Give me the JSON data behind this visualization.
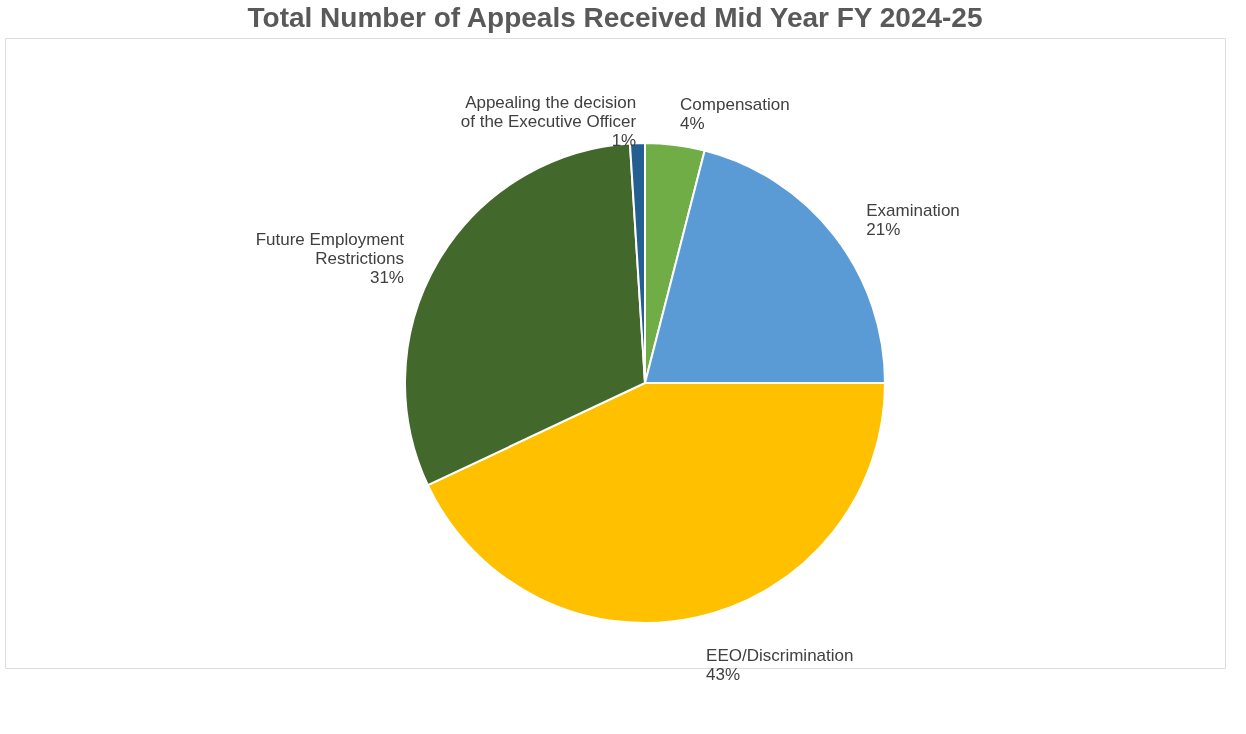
{
  "chart_data": {
    "type": "pie",
    "title": "Total Number of Appeals Received Mid Year FY 2024-25",
    "categories": [
      "Compensation",
      "Examination",
      "EEO/Discrimination",
      "Future Employment Restrictions",
      "Appealing the decision of the Executive Officer"
    ],
    "values": [
      4,
      21,
      43,
      31,
      1
    ],
    "colors": [
      "#70ad47",
      "#5b9bd5",
      "#ffc000",
      "#43682b",
      "#255e91"
    ],
    "value_labels": [
      "4%",
      "21%",
      "43%",
      "31%",
      "1%"
    ]
  }
}
